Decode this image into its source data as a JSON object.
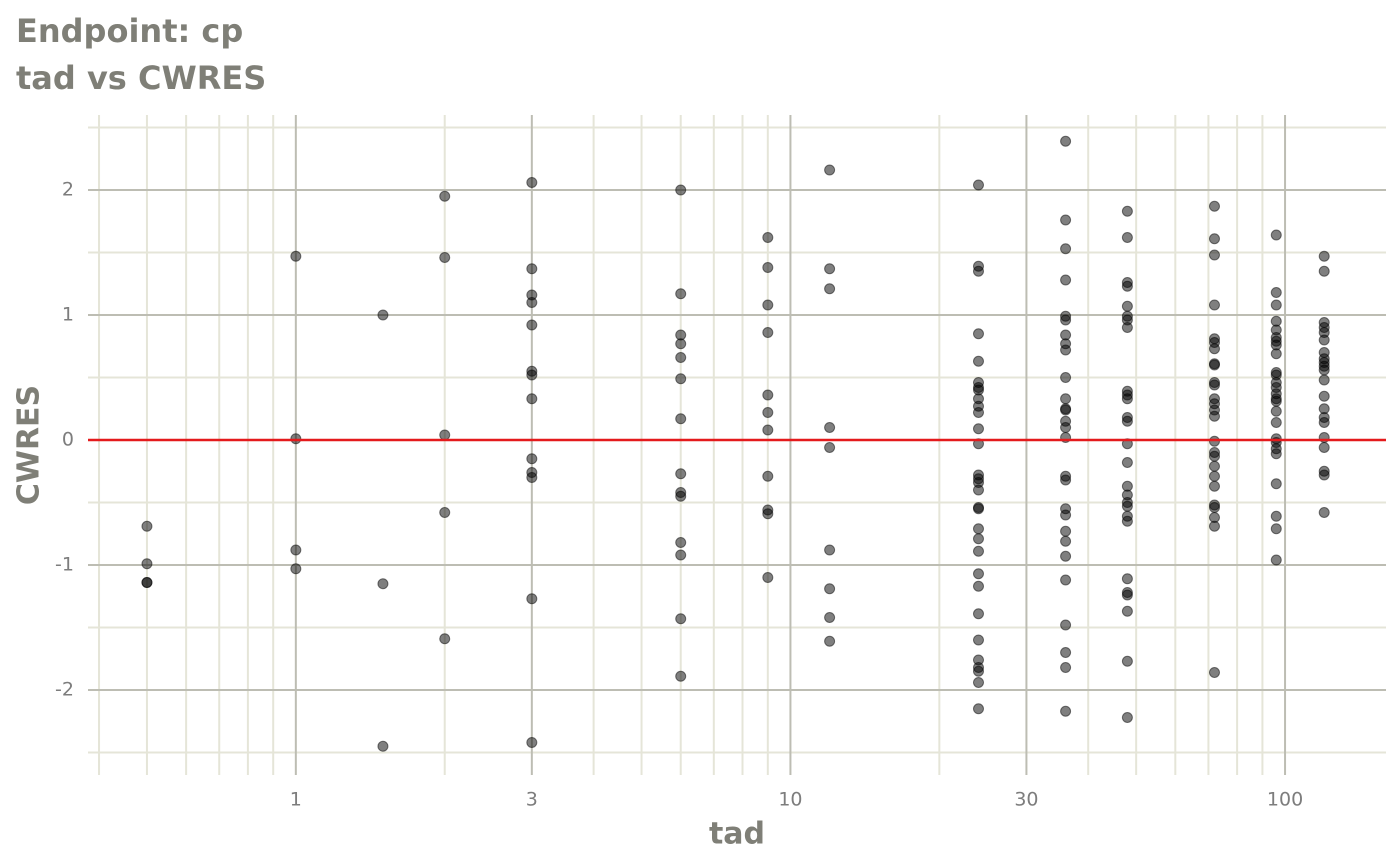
{
  "chart_data": {
    "type": "scatter",
    "title": "Endpoint:  cp",
    "subtitle": "tad vs CWRES",
    "x_label": "tad",
    "y_label": "CWRES",
    "log_x": true,
    "grid": true,
    "color": "#000000",
    "opacity": 0.5,
    "xlim": [
      0.38,
      160
    ],
    "ylim": [
      -2.68,
      2.6
    ],
    "xticks": [
      1,
      3,
      10,
      30,
      100
    ],
    "yticks": [
      -2,
      -1,
      0,
      1,
      2
    ],
    "x_minor_ticks": [
      0.4,
      0.5,
      0.6,
      0.7,
      0.8,
      0.9,
      2,
      4,
      5,
      6,
      7,
      8,
      9,
      20,
      40,
      50,
      60,
      70,
      80,
      90
    ],
    "y_minor_ticks": [
      -2.5,
      -1.5,
      -0.5,
      0.5,
      1.5,
      2.5
    ],
    "reference_line": {
      "value": 0,
      "color": "#e41a1c"
    },
    "x": [
      0.5,
      0.5,
      0.5,
      0.5,
      1,
      1,
      1,
      1,
      1.5,
      1.5,
      1.5,
      2,
      2,
      2,
      2,
      2,
      3,
      3,
      3,
      3,
      3,
      3,
      3,
      3,
      3,
      3,
      3,
      3,
      3,
      6,
      6,
      6,
      6,
      6,
      6,
      6,
      6,
      6,
      6,
      6,
      6,
      6,
      6,
      9,
      9,
      9,
      9,
      9,
      9,
      9,
      9,
      9,
      9,
      9,
      12,
      12,
      12,
      12,
      12,
      12,
      12,
      12,
      12,
      24,
      24,
      24,
      24,
      24,
      24,
      24,
      24,
      24,
      24,
      24,
      24,
      24,
      24,
      24,
      24,
      24,
      24,
      24,
      24,
      24,
      24,
      24,
      24,
      24,
      24,
      24,
      24,
      24,
      24,
      24,
      36,
      36,
      36,
      36,
      36,
      36,
      36,
      36,
      36,
      36,
      36,
      36,
      36,
      36,
      36,
      36,
      36,
      36,
      36,
      36,
      36,
      36,
      36,
      36,
      36,
      36,
      36,
      36,
      48,
      48,
      48,
      48,
      48,
      48,
      48,
      48,
      48,
      48,
      48,
      48,
      48,
      48,
      48,
      48,
      48,
      48,
      48,
      48,
      48,
      48,
      48,
      48,
      48,
      48,
      48,
      72,
      72,
      72,
      72,
      72,
      72,
      72,
      72,
      72,
      72,
      72,
      72,
      72,
      72,
      72,
      72,
      72,
      72,
      72,
      72,
      72,
      72,
      72,
      72,
      72,
      72,
      96,
      96,
      96,
      96,
      96,
      96,
      96,
      96,
      96,
      96,
      96,
      96,
      96,
      96,
      96,
      96,
      96,
      96,
      96,
      96,
      96,
      96,
      96,
      96,
      96,
      96,
      120,
      120,
      120,
      120,
      120,
      120,
      120,
      120,
      120,
      120,
      120,
      120,
      120,
      120,
      120,
      120,
      120,
      120,
      120,
      120,
      120
    ],
    "values": [
      -0.69,
      -0.99,
      -1.14,
      -1.14,
      1.47,
      0.01,
      -0.88,
      -1.03,
      1.0,
      -1.15,
      -2.45,
      1.95,
      1.46,
      0.04,
      -0.58,
      -1.59,
      2.06,
      1.37,
      1.16,
      1.1,
      0.92,
      0.55,
      0.52,
      0.33,
      -0.15,
      -0.26,
      -0.3,
      -1.27,
      -2.42,
      2.0,
      1.17,
      0.84,
      0.77,
      0.66,
      0.49,
      0.17,
      -0.27,
      -0.42,
      -0.45,
      -0.82,
      -0.92,
      -1.43,
      -1.89,
      1.62,
      1.38,
      1.08,
      0.86,
      0.36,
      0.22,
      0.08,
      -0.29,
      -0.56,
      -0.59,
      -1.1,
      2.16,
      1.37,
      1.21,
      0.1,
      -0.06,
      -0.88,
      -1.19,
      -1.42,
      -1.61,
      2.04,
      1.39,
      1.35,
      0.85,
      0.63,
      0.46,
      0.42,
      0.4,
      0.33,
      0.27,
      0.22,
      0.09,
      -0.03,
      -0.28,
      -0.31,
      -0.34,
      -0.4,
      -0.54,
      -0.55,
      -0.71,
      -0.79,
      -0.89,
      -1.07,
      -1.17,
      -1.39,
      -1.6,
      -1.76,
      -1.82,
      -1.85,
      -1.94,
      -2.15,
      2.39,
      1.76,
      1.53,
      1.28,
      0.99,
      0.96,
      0.84,
      0.77,
      0.72,
      0.5,
      0.33,
      0.25,
      0.24,
      0.15,
      0.1,
      0.02,
      -0.29,
      -0.32,
      -0.55,
      -0.6,
      -0.73,
      -0.81,
      -0.93,
      -1.12,
      -1.48,
      -1.7,
      -1.82,
      -2.17,
      1.83,
      1.62,
      1.26,
      1.23,
      1.07,
      0.99,
      0.96,
      0.9,
      0.39,
      0.36,
      0.33,
      0.18,
      0.15,
      -0.03,
      -0.18,
      -0.37,
      -0.44,
      -0.5,
      -0.53,
      -0.61,
      -0.65,
      -1.11,
      -1.22,
      -1.24,
      -1.37,
      -1.77,
      -2.22,
      1.87,
      1.61,
      1.48,
      1.08,
      0.81,
      0.78,
      0.73,
      0.61,
      0.6,
      0.46,
      0.44,
      0.33,
      0.29,
      0.24,
      0.19,
      -0.01,
      -0.1,
      -0.13,
      -0.21,
      -0.29,
      -0.37,
      -0.52,
      -0.54,
      -0.62,
      -0.69,
      -1.86,
      1.64,
      1.18,
      1.08,
      0.95,
      0.88,
      0.82,
      0.79,
      0.76,
      0.69,
      0.54,
      0.52,
      0.46,
      0.42,
      0.37,
      0.33,
      0.31,
      0.23,
      0.14,
      0.01,
      -0.02,
      -0.07,
      -0.11,
      -0.35,
      -0.61,
      -0.71,
      -0.96,
      1.47,
      1.35,
      0.94,
      0.9,
      0.86,
      0.8,
      0.7,
      0.65,
      0.62,
      0.59,
      0.56,
      0.48,
      0.35,
      0.25,
      0.18,
      0.14,
      0.02,
      -0.06,
      -0.25,
      -0.28,
      -0.58
    ]
  }
}
